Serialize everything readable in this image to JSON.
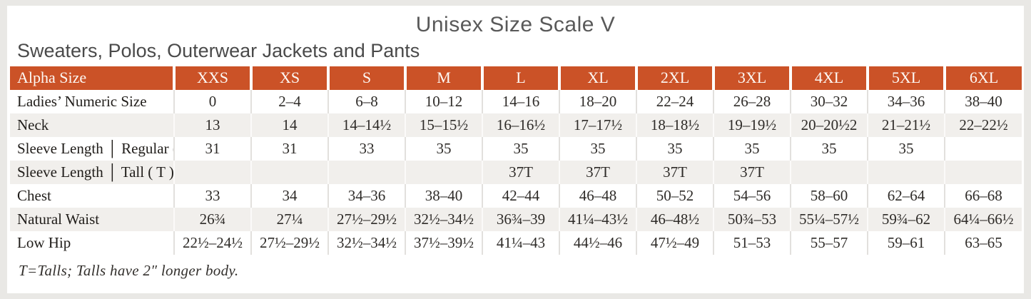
{
  "title": "Unisex Size Scale V",
  "subtitle": "Sweaters, Polos, Outerwear Jackets and Pants",
  "footnote": "T=Talls; Talls have 2″ longer body.",
  "colors": {
    "header_bg": "#cb5227",
    "header_text": "#ffffff",
    "stripe_row": "#f1efec",
    "title_text": "#595959"
  },
  "table": {
    "header": [
      "Alpha Size",
      "XXS",
      "XS",
      "S",
      "M",
      "L",
      "XL",
      "2XL",
      "3XL",
      "4XL",
      "5XL",
      "6XL"
    ],
    "rows": [
      {
        "label": "Ladies’ Numeric Size",
        "values": [
          "0",
          "2–4",
          "6–8",
          "10–12",
          "14–16",
          "18–20",
          "22–24",
          "26–28",
          "30–32",
          "34–36",
          "38–40"
        ]
      },
      {
        "label": "Neck",
        "values": [
          "13",
          "14",
          "14–14½",
          "15–15½",
          "16–16½",
          "17–17½",
          "18–18½",
          "19–19½",
          "20–20½2",
          "21–21½",
          "22–22½"
        ]
      },
      {
        "label": "Sleeve Length │ Regular ( R )",
        "values": [
          "31",
          "31",
          "33",
          "35",
          "35",
          "35",
          "35",
          "35",
          "35",
          "35",
          ""
        ]
      },
      {
        "label": "Sleeve Length │ Tall ( T )",
        "values": [
          "",
          "",
          "",
          "",
          "37T",
          "37T",
          "37T",
          "37T",
          "",
          "",
          ""
        ]
      },
      {
        "label": "Chest",
        "values": [
          "33",
          "34",
          "34–36",
          "38–40",
          "42–44",
          "46–48",
          "50–52",
          "54–56",
          "58–60",
          "62–64",
          "66–68"
        ]
      },
      {
        "label": "Natural Waist",
        "values": [
          "26¾",
          "27¼",
          "27½–29½",
          "32½–34½",
          "36¾–39",
          "41¼–43½",
          "46–48½",
          "50¾–53",
          "55¼–57½",
          "59¾–62",
          "64¼–66½"
        ]
      },
      {
        "label": "Low Hip",
        "values": [
          "22½–24½",
          "27½–29½",
          "32½–34½",
          "37½–39½",
          "41¼–43",
          "44½–46",
          "47½–49",
          "51–53",
          "55–57",
          "59–61",
          "63–65"
        ]
      }
    ]
  }
}
